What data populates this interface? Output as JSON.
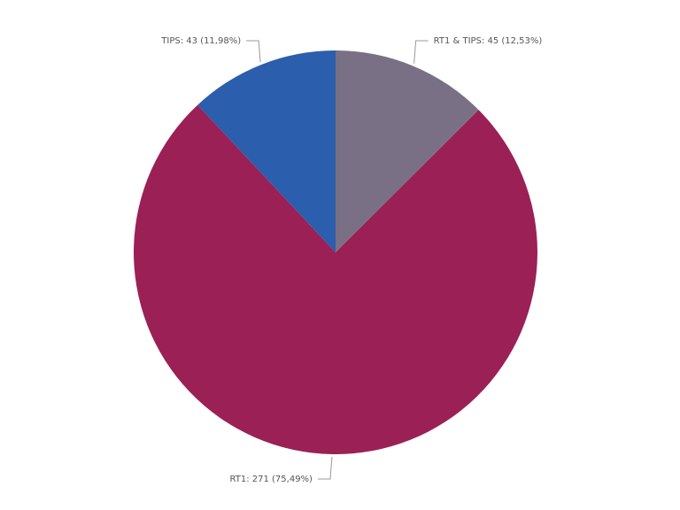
{
  "chart_data": {
    "type": "pie",
    "values": [
      45,
      271,
      43
    ],
    "value_labels": [
      "RT1 & TIPS: 45 (12,53%)",
      "RT1: 271 (75,49%)",
      "TIPS: 43 (11,98%)"
    ],
    "colors": [
      "#7a7085",
      "#9b2055",
      "#2b5ead"
    ]
  }
}
